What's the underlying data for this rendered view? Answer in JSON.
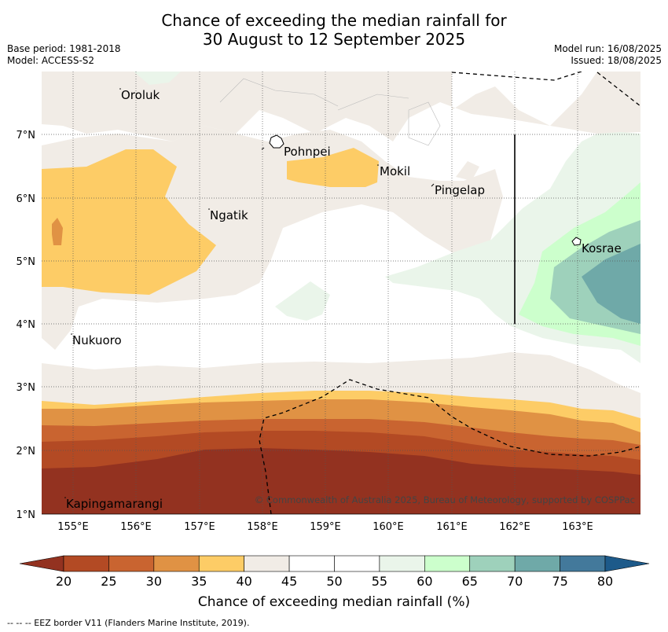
{
  "title_line1": "Chance of exceeding the median rainfall for",
  "title_line2": "30 August to 12 September 2025",
  "meta": {
    "base_period": "Base period: 1981-2018",
    "model": "Model: ACCESS-S2",
    "model_run": "Model run: 16/08/2025",
    "issued": "Issued: 18/08/2025"
  },
  "copyright": "© Commonwealth of Australia 2025, Bureau of Meteorology, supported by COSPPac",
  "places": {
    "oroluk": "Oroluk",
    "pohnpei": "Pohnpei",
    "mokil": "Mokil",
    "pingelap": "Pingelap",
    "ngatik": "Ngatik",
    "kosrae": "Kosrae",
    "nukuoro": "Nukuoro",
    "kapingamarangi": "Kapingamarangi"
  },
  "axes": {
    "lon_ticks": [
      "155°E",
      "156°E",
      "157°E",
      "158°E",
      "159°E",
      "160°E",
      "161°E",
      "162°E",
      "163°E"
    ],
    "lat_ticks": [
      "7°N",
      "6°N",
      "5°N",
      "4°N",
      "3°N",
      "2°N",
      "1°N"
    ]
  },
  "colorbar": {
    "title": "Chance of exceeding median rainfall (%)",
    "ticks": [
      "20",
      "25",
      "30",
      "35",
      "40",
      "45",
      "50",
      "55",
      "60",
      "65",
      "70",
      "75",
      "80"
    ],
    "colors": [
      "#b34a24",
      "#c96430",
      "#e09244",
      "#fdcc66",
      "#f1ece6",
      "#ffffff",
      "#ffffff",
      "#eaf5ea",
      "#ccffcc",
      "#9ed1bb",
      "#6fa9a8",
      "#43799b"
    ],
    "low_color": "#933220",
    "high_color": "#1d5a8a"
  },
  "footer": "--  --  -- EEZ border V11 (Flanders Marine Institute, 2019)."
}
